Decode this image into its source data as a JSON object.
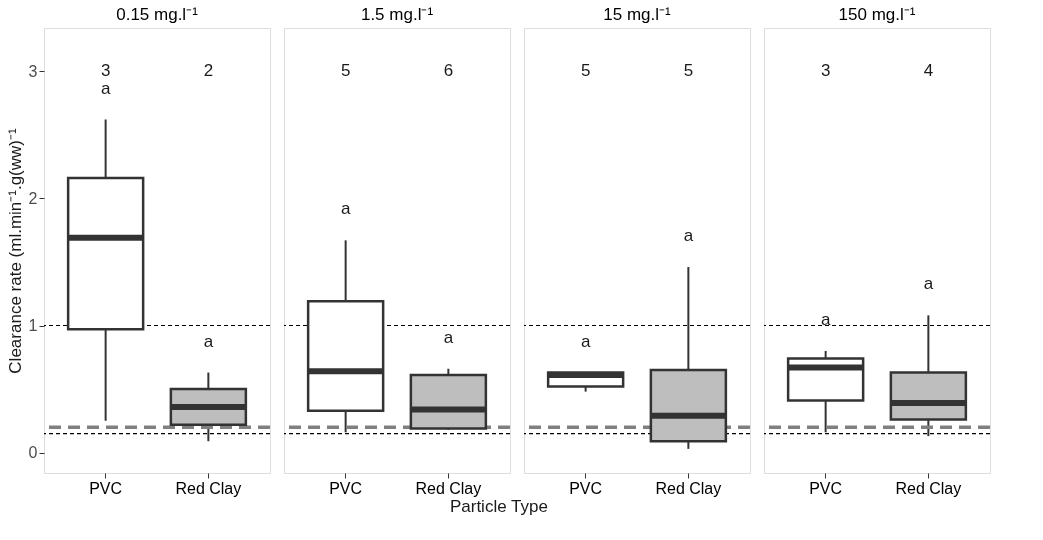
{
  "chart_data": [
    {
      "type": "box",
      "title": "0.15 mg.l⁻¹",
      "ylabel": "Clearance rate (ml.min⁻¹.g(ww)⁻¹",
      "categories": [
        "PVC",
        "Red Clay"
      ],
      "colors": [
        "#ffffff",
        "#bebebe"
      ],
      "boxes": [
        {
          "low": 0.25,
          "q1": 0.97,
          "median": 1.69,
          "q3": 2.16,
          "high": 2.62
        },
        {
          "low": 0.09,
          "q1": 0.22,
          "median": 0.36,
          "q3": 0.5,
          "high": 0.63
        }
      ],
      "ylim": [
        -0.16,
        3.34
      ],
      "yticks": [
        0,
        1,
        2,
        3
      ],
      "grid": false,
      "ref_lines": [
        {
          "axis": "y",
          "value": 1,
          "color": "#000000",
          "line_style": "dotted"
        },
        {
          "axis": "y",
          "value": 0.15,
          "color": "#000000",
          "line_style": "dotted"
        },
        {
          "axis": "y",
          "value": 0.2,
          "color": "#808080",
          "line_style": "dashed"
        }
      ],
      "annotations": [
        "3",
        "2",
        "a",
        "a"
      ]
    },
    {
      "type": "box",
      "title": "1.5 mg.l⁻¹",
      "xlabel": "Particle Type",
      "categories": [
        "PVC",
        "Red Clay"
      ],
      "colors": [
        "#ffffff",
        "#bebebe"
      ],
      "boxes": [
        {
          "low": 0.16,
          "q1": 0.33,
          "median": 0.64,
          "q3": 1.19,
          "high": 1.67
        },
        {
          "low": 0.18,
          "q1": 0.19,
          "median": 0.34,
          "q3": 0.61,
          "high": 0.66
        }
      ],
      "ylim": [
        -0.16,
        3.34
      ],
      "tick_labels": "x",
      "grid": false,
      "ref_lines": [
        {
          "axis": "y",
          "value": 1,
          "color": "#000000",
          "line_style": "dotted"
        },
        {
          "axis": "y",
          "value": 0.15,
          "color": "#000000",
          "line_style": "dotted"
        },
        {
          "axis": "y",
          "value": 0.2,
          "color": "#808080",
          "line_style": "dashed"
        }
      ],
      "annotations": [
        "5",
        "6",
        "a",
        "a"
      ]
    },
    {
      "type": "box",
      "title": "15 mg.l⁻¹",
      "categories": [
        "PVC",
        "Red Clay"
      ],
      "colors": [
        "#ffffff",
        "#bebebe"
      ],
      "boxes": [
        {
          "low": 0.48,
          "q1": 0.52,
          "median": 0.61,
          "q3": 0.63,
          "high": 0.63
        },
        {
          "low": 0.03,
          "q1": 0.09,
          "median": 0.29,
          "q3": 0.65,
          "high": 1.46
        }
      ],
      "ylim": [
        -0.16,
        3.34
      ],
      "tick_labels": "x",
      "grid": false,
      "ref_lines": [
        {
          "axis": "y",
          "value": 1,
          "color": "#000000",
          "line_style": "dotted"
        },
        {
          "axis": "y",
          "value": 0.15,
          "color": "#000000",
          "line_style": "dotted"
        },
        {
          "axis": "y",
          "value": 0.2,
          "color": "#808080",
          "line_style": "dashed"
        }
      ],
      "annotations": [
        "5",
        "5",
        "a",
        "a"
      ]
    },
    {
      "type": "box",
      "title": "150 mg.l⁻¹",
      "categories": [
        "PVC",
        "Red Clay"
      ],
      "colors": [
        "#ffffff",
        "#bebebe"
      ],
      "boxes": [
        {
          "low": 0.16,
          "q1": 0.41,
          "median": 0.67,
          "q3": 0.74,
          "high": 0.8
        },
        {
          "low": 0.13,
          "q1": 0.26,
          "median": 0.39,
          "q3": 0.63,
          "high": 1.08
        }
      ],
      "ylim": [
        -0.16,
        3.34
      ],
      "tick_labels": "x",
      "grid": false,
      "ref_lines": [
        {
          "axis": "y",
          "value": 1,
          "color": "#000000",
          "line_style": "dotted"
        },
        {
          "axis": "y",
          "value": 0.15,
          "color": "#000000",
          "line_style": "dotted"
        },
        {
          "axis": "y",
          "value": 0.2,
          "color": "#808080",
          "line_style": "dashed"
        }
      ],
      "annotations": [
        "3",
        "4",
        "a",
        "a"
      ]
    }
  ]
}
